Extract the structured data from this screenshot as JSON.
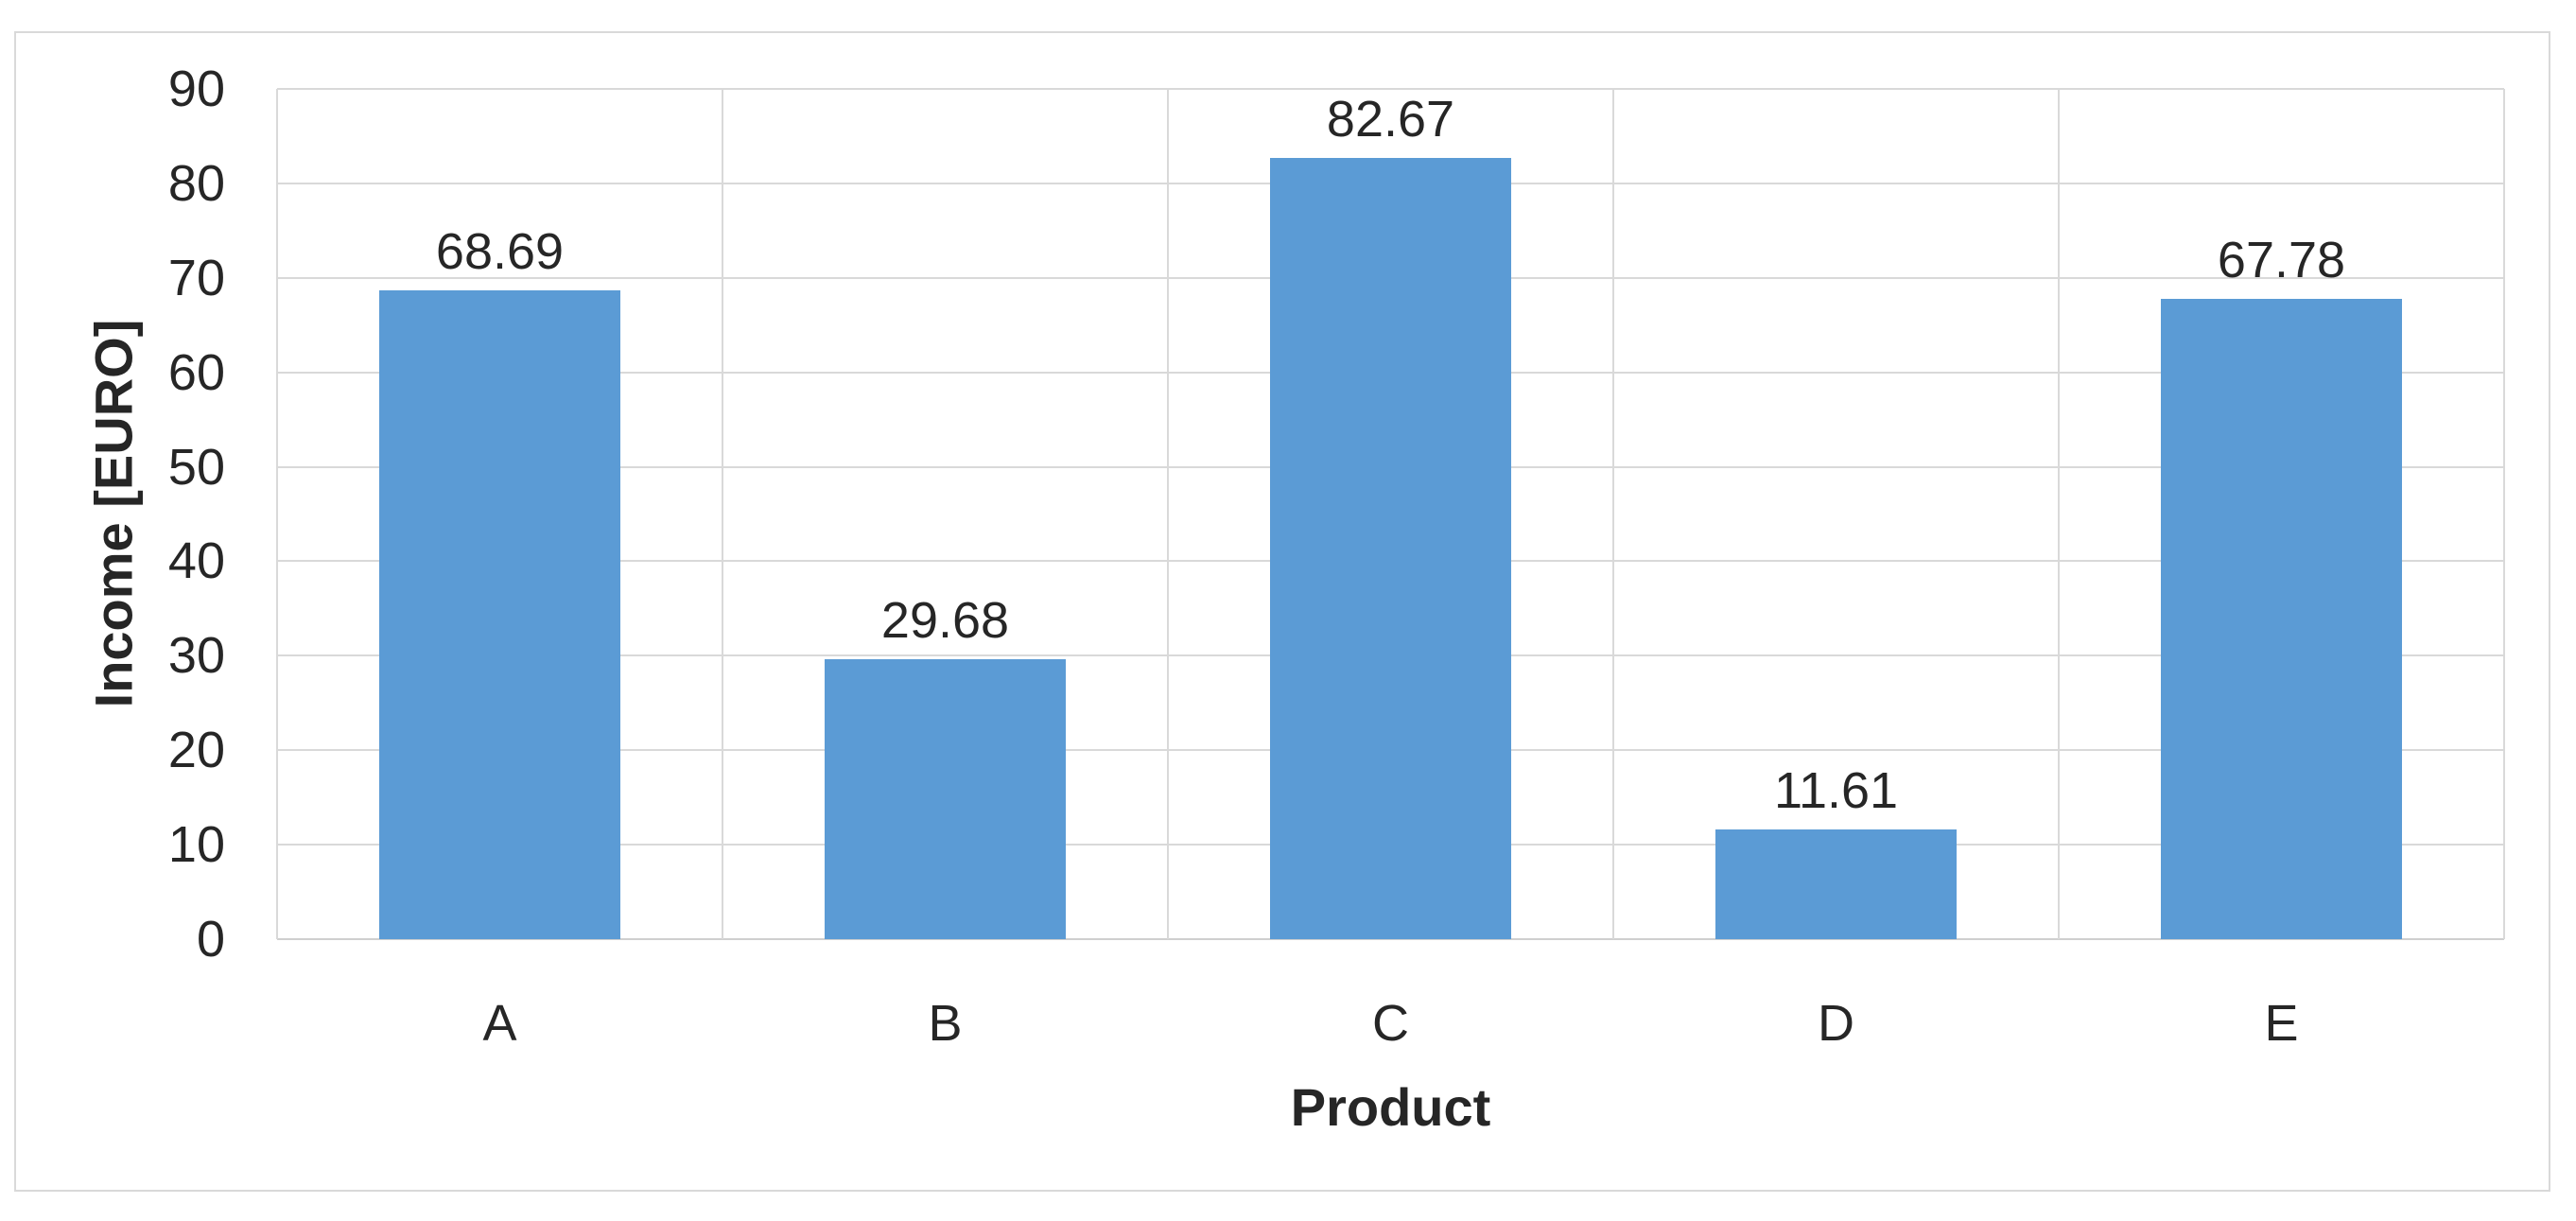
{
  "chart_data": {
    "type": "bar",
    "categories": [
      "A",
      "B",
      "C",
      "D",
      "E"
    ],
    "values": [
      68.69,
      29.68,
      82.67,
      11.61,
      67.78
    ],
    "data_labels": [
      "68.69",
      "29.68",
      "82.67",
      "11.61",
      "67.78"
    ],
    "title": "",
    "xlabel": "Product",
    "ylabel": "Income [EURO]",
    "ylim": [
      0,
      90
    ],
    "yticks": [
      0,
      10,
      20,
      30,
      40,
      50,
      60,
      70,
      80,
      90
    ],
    "grid": true,
    "legend_visible": false,
    "bar_color": "#5B9BD5",
    "gridline_color": "#D9D9D9",
    "chart_border_color": "#D9D9D9",
    "text_color": "#262626",
    "background_color": "#FFFFFF"
  }
}
